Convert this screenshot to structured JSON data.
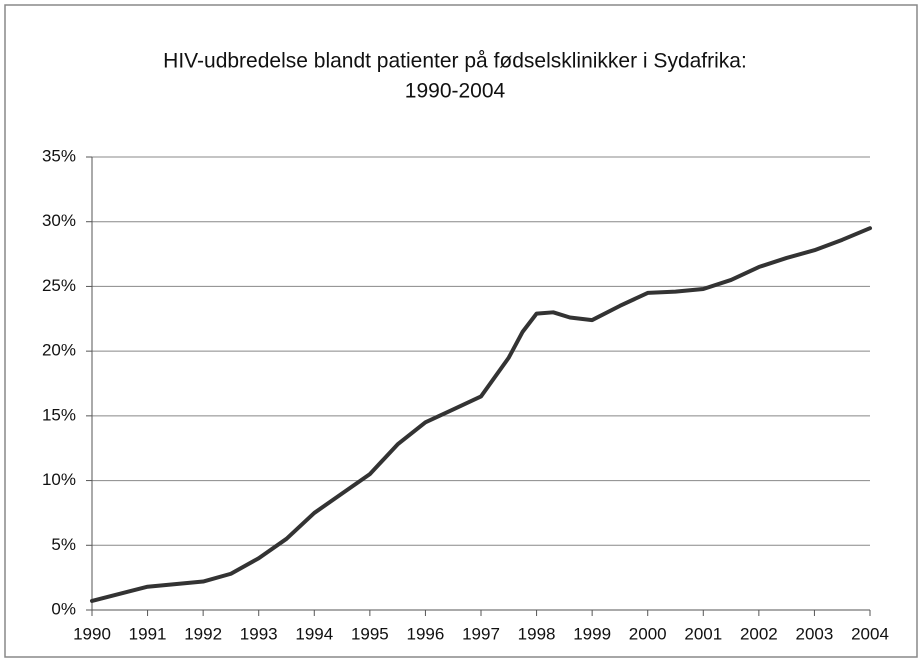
{
  "chart_data": {
    "type": "line",
    "title": [
      "HIV-udbredelse blandt patienter på fødselsklinikker i Sydafrika:",
      "1990-2004"
    ],
    "x": [
      1990,
      1991,
      1991.5,
      1992,
      1992.5,
      1993,
      1993.5,
      1994,
      1994.5,
      1995,
      1995.5,
      1996,
      1996.5,
      1997,
      1997.5,
      1997.75,
      1998,
      1998.3,
      1998.6,
      1999,
      1999.5,
      2000,
      2000.5,
      2001,
      2001.5,
      2002,
      2002.5,
      2003,
      2003.5,
      2004
    ],
    "series": [
      {
        "color": "#333333",
        "values": [
          0.7,
          1.8,
          2.0,
          2.2,
          2.8,
          4.0,
          5.5,
          7.5,
          9.0,
          10.5,
          12.8,
          14.5,
          15.5,
          16.5,
          19.5,
          21.5,
          22.9,
          23.0,
          22.6,
          22.4,
          23.5,
          24.5,
          24.6,
          24.8,
          25.5,
          26.5,
          27.2,
          27.8,
          28.6,
          29.5
        ]
      }
    ],
    "xlim": [
      1990,
      2004
    ],
    "xticks": [
      1990,
      1991,
      1992,
      1993,
      1994,
      1995,
      1996,
      1997,
      1998,
      1999,
      2000,
      2001,
      2002,
      2003,
      2004
    ],
    "ylim": [
      0,
      35
    ],
    "yticks": [
      {
        "value": 0,
        "label": "0%"
      },
      {
        "value": 5,
        "label": "5%"
      },
      {
        "value": 10,
        "label": "10%"
      },
      {
        "value": 15,
        "label": "15%"
      },
      {
        "value": 20,
        "label": "20%"
      },
      {
        "value": 25,
        "label": "25%"
      },
      {
        "value": 30,
        "label": "30%"
      },
      {
        "value": 35,
        "label": "35%"
      }
    ],
    "grid": true
  }
}
